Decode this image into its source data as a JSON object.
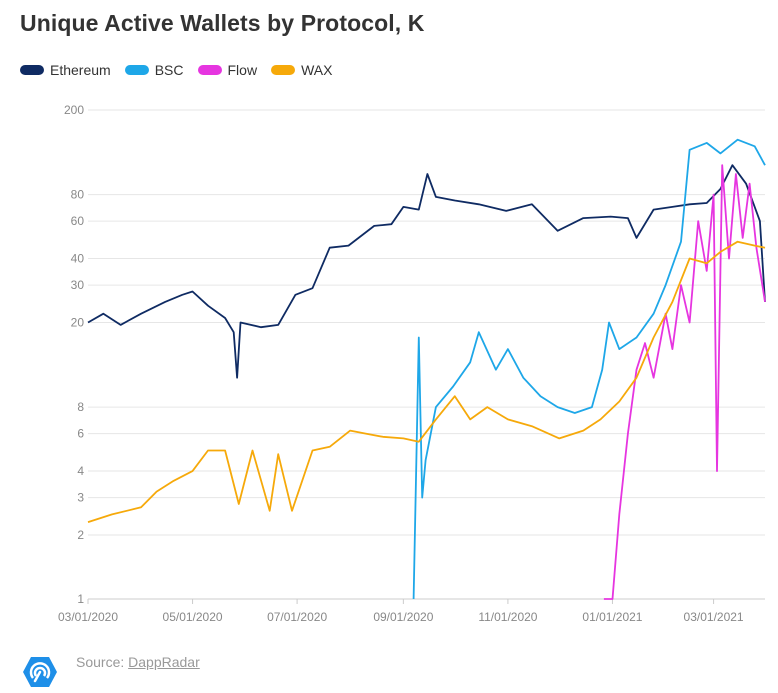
{
  "chart_data": {
    "type": "line",
    "title": "Unique Active Wallets by Protocol, K",
    "yscale": "log",
    "ylim": [
      1,
      200
    ],
    "y_ticks": [
      1,
      2,
      3,
      4,
      6,
      8,
      20,
      30,
      40,
      60,
      80,
      200
    ],
    "x_range": [
      "2020-03-01",
      "2021-03-31"
    ],
    "x_ticks": [
      "03/01/2020",
      "05/01/2020",
      "07/01/2020",
      "09/01/2020",
      "11/01/2020",
      "01/01/2021",
      "03/01/2021"
    ],
    "grid": true,
    "legend_position": "top-left",
    "series": [
      {
        "name": "Ethereum",
        "color": "#0f2b63",
        "points": [
          [
            "2020-03-01",
            20
          ],
          [
            "2020-03-10",
            22
          ],
          [
            "2020-03-20",
            19.5
          ],
          [
            "2020-04-01",
            22
          ],
          [
            "2020-04-15",
            25
          ],
          [
            "2020-04-25",
            27
          ],
          [
            "2020-05-01",
            28
          ],
          [
            "2020-05-10",
            24
          ],
          [
            "2020-05-20",
            21
          ],
          [
            "2020-05-25",
            18
          ],
          [
            "2020-05-27",
            11
          ],
          [
            "2020-05-29",
            20
          ],
          [
            "2020-06-10",
            19
          ],
          [
            "2020-06-20",
            19.5
          ],
          [
            "2020-06-30",
            27
          ],
          [
            "2020-07-10",
            29
          ],
          [
            "2020-07-20",
            45
          ],
          [
            "2020-07-31",
            46
          ],
          [
            "2020-08-15",
            57
          ],
          [
            "2020-08-25",
            58
          ],
          [
            "2020-09-01",
            70
          ],
          [
            "2020-09-10",
            68
          ],
          [
            "2020-09-15",
            100
          ],
          [
            "2020-09-20",
            78
          ],
          [
            "2020-10-01",
            75
          ],
          [
            "2020-10-15",
            72
          ],
          [
            "2020-10-31",
            67
          ],
          [
            "2020-11-15",
            72
          ],
          [
            "2020-11-30",
            54
          ],
          [
            "2020-12-15",
            62
          ],
          [
            "2020-12-31",
            63
          ],
          [
            "2021-01-10",
            62
          ],
          [
            "2021-01-15",
            50
          ],
          [
            "2021-01-25",
            68
          ],
          [
            "2021-02-05",
            70
          ],
          [
            "2021-02-15",
            72
          ],
          [
            "2021-02-25",
            73
          ],
          [
            "2021-03-05",
            85
          ],
          [
            "2021-03-12",
            110
          ],
          [
            "2021-03-20",
            90
          ],
          [
            "2021-03-28",
            60
          ],
          [
            "2021-03-31",
            25
          ]
        ]
      },
      {
        "name": "BSC",
        "color": "#1ea7e8",
        "points": [
          [
            "2020-09-07",
            1
          ],
          [
            "2020-09-10",
            17
          ],
          [
            "2020-09-12",
            3
          ],
          [
            "2020-09-14",
            4.5
          ],
          [
            "2020-09-20",
            8
          ],
          [
            "2020-09-30",
            10
          ],
          [
            "2020-10-10",
            13
          ],
          [
            "2020-10-15",
            18
          ],
          [
            "2020-10-25",
            12
          ],
          [
            "2020-11-01",
            15
          ],
          [
            "2020-11-10",
            11
          ],
          [
            "2020-11-20",
            9
          ],
          [
            "2020-11-30",
            8
          ],
          [
            "2020-12-10",
            7.5
          ],
          [
            "2020-12-20",
            8
          ],
          [
            "2020-12-26",
            12
          ],
          [
            "2020-12-30",
            20
          ],
          [
            "2021-01-05",
            15
          ],
          [
            "2021-01-15",
            17
          ],
          [
            "2021-01-25",
            22
          ],
          [
            "2021-02-01",
            30
          ],
          [
            "2021-02-10",
            48
          ],
          [
            "2021-02-15",
            130
          ],
          [
            "2021-02-25",
            140
          ],
          [
            "2021-03-05",
            125
          ],
          [
            "2021-03-15",
            145
          ],
          [
            "2021-03-25",
            135
          ],
          [
            "2021-03-31",
            110
          ]
        ]
      },
      {
        "name": "Flow",
        "color": "#e635e0",
        "points": [
          [
            "2020-12-27",
            1
          ],
          [
            "2021-01-01",
            1
          ],
          [
            "2021-01-05",
            2.5
          ],
          [
            "2021-01-10",
            6
          ],
          [
            "2021-01-15",
            12
          ],
          [
            "2021-01-20",
            16
          ],
          [
            "2021-01-25",
            11
          ],
          [
            "2021-02-01",
            22
          ],
          [
            "2021-02-05",
            15
          ],
          [
            "2021-02-10",
            30
          ],
          [
            "2021-02-15",
            20
          ],
          [
            "2021-02-20",
            60
          ],
          [
            "2021-02-25",
            35
          ],
          [
            "2021-03-01",
            80
          ],
          [
            "2021-03-03",
            4
          ],
          [
            "2021-03-06",
            110
          ],
          [
            "2021-03-10",
            40
          ],
          [
            "2021-03-14",
            100
          ],
          [
            "2021-03-18",
            50
          ],
          [
            "2021-03-22",
            90
          ],
          [
            "2021-03-26",
            45
          ],
          [
            "2021-03-31",
            25
          ]
        ]
      },
      {
        "name": "WAX",
        "color": "#f6a90a",
        "points": [
          [
            "2020-03-01",
            2.3
          ],
          [
            "2020-03-15",
            2.5
          ],
          [
            "2020-04-01",
            2.7
          ],
          [
            "2020-04-10",
            3.2
          ],
          [
            "2020-04-20",
            3.6
          ],
          [
            "2020-05-01",
            4
          ],
          [
            "2020-05-10",
            5
          ],
          [
            "2020-05-20",
            5
          ],
          [
            "2020-05-28",
            2.8
          ],
          [
            "2020-06-05",
            5
          ],
          [
            "2020-06-15",
            2.6
          ],
          [
            "2020-06-20",
            4.8
          ],
          [
            "2020-06-28",
            2.6
          ],
          [
            "2020-07-10",
            5
          ],
          [
            "2020-07-20",
            5.2
          ],
          [
            "2020-08-01",
            6.2
          ],
          [
            "2020-08-10",
            6
          ],
          [
            "2020-08-20",
            5.8
          ],
          [
            "2020-09-01",
            5.7
          ],
          [
            "2020-09-10",
            5.5
          ],
          [
            "2020-09-20",
            7
          ],
          [
            "2020-10-01",
            9
          ],
          [
            "2020-10-10",
            7
          ],
          [
            "2020-10-20",
            8
          ],
          [
            "2020-11-01",
            7
          ],
          [
            "2020-11-15",
            6.5
          ],
          [
            "2020-12-01",
            5.7
          ],
          [
            "2020-12-15",
            6.2
          ],
          [
            "2020-12-25",
            7
          ],
          [
            "2021-01-05",
            8.5
          ],
          [
            "2021-01-15",
            11
          ],
          [
            "2021-01-25",
            17
          ],
          [
            "2021-02-05",
            25
          ],
          [
            "2021-02-15",
            40
          ],
          [
            "2021-02-25",
            38
          ],
          [
            "2021-03-05",
            43
          ],
          [
            "2021-03-15",
            48
          ],
          [
            "2021-03-25",
            46
          ],
          [
            "2021-03-31",
            45
          ]
        ]
      }
    ]
  },
  "source": {
    "label": "Source:",
    "link": "DappRadar"
  }
}
